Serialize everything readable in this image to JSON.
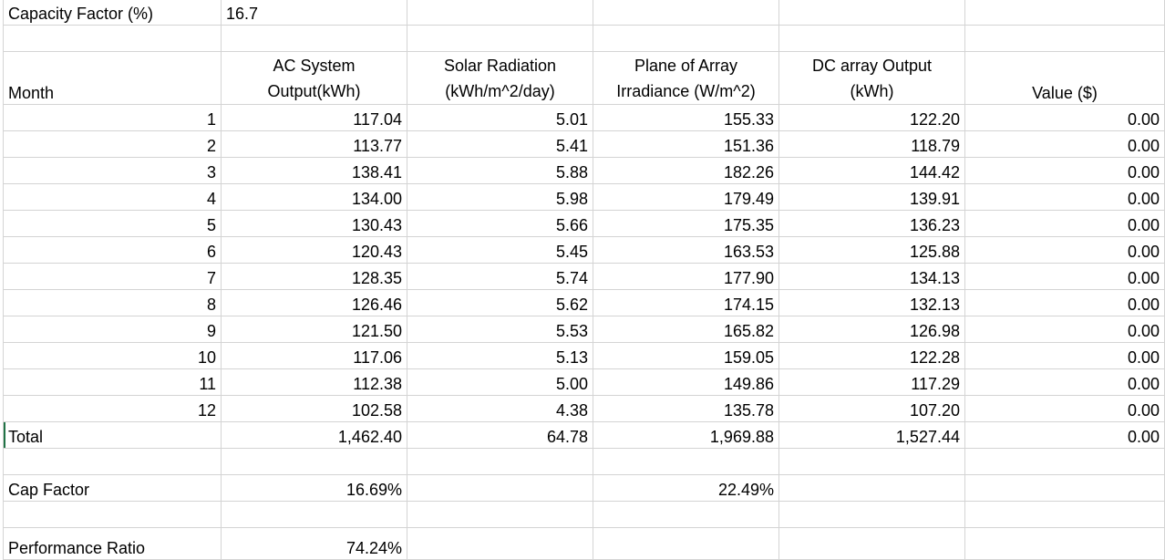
{
  "sheet": {
    "capacity_factor_label": "Capacity Factor (%)",
    "capacity_factor_value": "16.7",
    "headers": {
      "month": "Month",
      "ac_output": [
        "AC System",
        "Output(kWh)"
      ],
      "solar_radiation": [
        "Solar Radiation",
        "(kWh/m^2/day)"
      ],
      "poa_irradiance": [
        "Plane of Array",
        "Irradiance (W/m^2)"
      ],
      "dc_output": [
        "DC array Output",
        "(kWh)"
      ],
      "value": "Value ($)"
    },
    "rows": [
      {
        "month": "1",
        "ac": "117.04",
        "solar": "5.01",
        "poa": "155.33",
        "dc": "122.20",
        "value": "0.00"
      },
      {
        "month": "2",
        "ac": "113.77",
        "solar": "5.41",
        "poa": "151.36",
        "dc": "118.79",
        "value": "0.00"
      },
      {
        "month": "3",
        "ac": "138.41",
        "solar": "5.88",
        "poa": "182.26",
        "dc": "144.42",
        "value": "0.00"
      },
      {
        "month": "4",
        "ac": "134.00",
        "solar": "5.98",
        "poa": "179.49",
        "dc": "139.91",
        "value": "0.00"
      },
      {
        "month": "5",
        "ac": "130.43",
        "solar": "5.66",
        "poa": "175.35",
        "dc": "136.23",
        "value": "0.00"
      },
      {
        "month": "6",
        "ac": "120.43",
        "solar": "5.45",
        "poa": "163.53",
        "dc": "125.88",
        "value": "0.00"
      },
      {
        "month": "7",
        "ac": "128.35",
        "solar": "5.74",
        "poa": "177.90",
        "dc": "134.13",
        "value": "0.00"
      },
      {
        "month": "8",
        "ac": "126.46",
        "solar": "5.62",
        "poa": "174.15",
        "dc": "132.13",
        "value": "0.00"
      },
      {
        "month": "9",
        "ac": "121.50",
        "solar": "5.53",
        "poa": "165.82",
        "dc": "126.98",
        "value": "0.00"
      },
      {
        "month": "10",
        "ac": "117.06",
        "solar": "5.13",
        "poa": "159.05",
        "dc": "122.28",
        "value": "0.00"
      },
      {
        "month": "11",
        "ac": "112.38",
        "solar": "5.00",
        "poa": "149.86",
        "dc": "117.29",
        "value": "0.00"
      },
      {
        "month": "12",
        "ac": "102.58",
        "solar": "4.38",
        "poa": "135.78",
        "dc": "107.20",
        "value": "0.00"
      }
    ],
    "total": {
      "label": "Total",
      "ac": "1,462.40",
      "solar": "64.78",
      "poa": "1,969.88",
      "dc": "1,527.44",
      "value": "0.00"
    },
    "cap_factor": {
      "label": "Cap Factor",
      "ac": "16.69%",
      "poa": "22.49%"
    },
    "performance_ratio": {
      "label": "Performance Ratio",
      "ac": "74.24%"
    }
  },
  "colors": {
    "gridline": "#d4d4d4",
    "active_cell_marker": "#217346"
  }
}
